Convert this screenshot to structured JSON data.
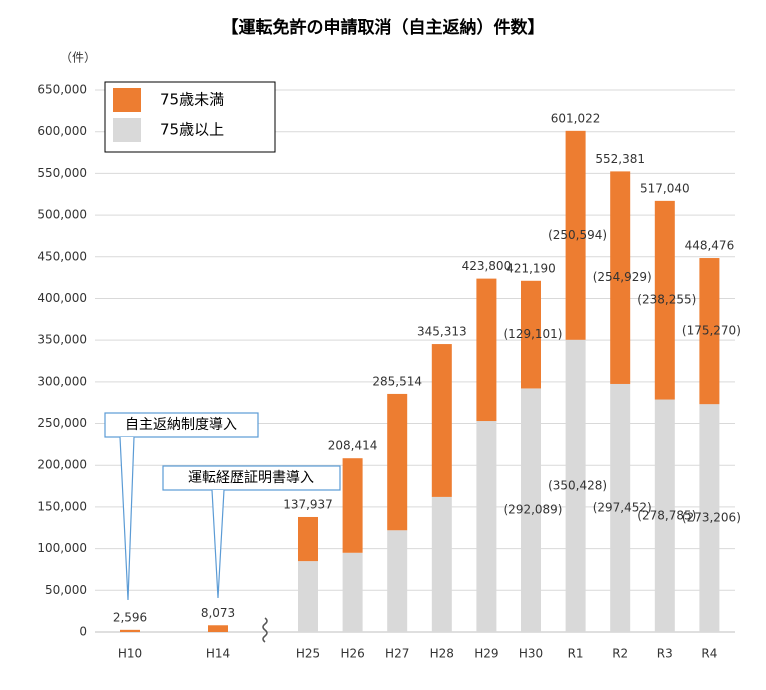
{
  "chart_data": {
    "type": "stacked_bar",
    "title": "【運転免許の申請取消（自主返納）件数】",
    "y_axis_label": "（件）",
    "categories": [
      "H10",
      "H14",
      "H25",
      "H26",
      "H27",
      "H28",
      "H29",
      "H30",
      "R1",
      "R2",
      "R3",
      "R4"
    ],
    "series": [
      {
        "name": "75歳未満",
        "color": "#ed7d31",
        "values": [
          2596,
          8073,
          52937,
          113414,
          163514,
          183313,
          170800,
          129101,
          250594,
          254929,
          238255,
          175270
        ],
        "value_labels": [
          null,
          null,
          null,
          null,
          null,
          null,
          null,
          "(129,101)",
          "(250,594)",
          "(254,929)",
          "(238,255)",
          "(175,270)"
        ]
      },
      {
        "name": "75歳以上",
        "color": "#d9d9d9",
        "values": [
          0,
          0,
          85000,
          95000,
          122000,
          162000,
          253000,
          292089,
          350428,
          297452,
          278785,
          273206
        ],
        "value_labels": [
          null,
          null,
          null,
          null,
          null,
          null,
          null,
          "(292,089)",
          "(350,428)",
          "(297,452)",
          "(278,785)",
          "(273,206)"
        ]
      }
    ],
    "totals": [
      2596,
      8073,
      137937,
      208414,
      285514,
      345313,
      423800,
      421190,
      601022,
      552381,
      517040,
      448476
    ],
    "total_labels": [
      "2,596",
      "8,073",
      "137,937",
      "208,414",
      "285,514",
      "345,313",
      "423,800",
      "421,190",
      "601,022",
      "552,381",
      "517,040",
      "448,476"
    ],
    "ylim": [
      0,
      650000
    ],
    "yticks": [
      0,
      {
        "value": 50000,
        "label": "50,000"
      },
      {
        "value": 100000,
        "label": "100,000"
      },
      {
        "value": 150000,
        "label": "150,000"
      },
      {
        "value": 200000,
        "label": "200,000"
      },
      {
        "value": 250000,
        "label": "250,000"
      },
      {
        "value": 300000,
        "label": "300,000"
      },
      {
        "value": 350000,
        "label": "350,000"
      },
      {
        "value": 400000,
        "label": "400,000"
      },
      {
        "value": 450000,
        "label": "450,000"
      },
      {
        "value": 500000,
        "label": "500,000"
      },
      {
        "value": 550000,
        "label": "550,000"
      },
      {
        "value": 600000,
        "label": "600,000"
      },
      {
        "value": 650000,
        "label": "650,000"
      }
    ],
    "grid": true,
    "axis_break_after": 1,
    "annotations": [
      "自主返納制度導入",
      "運転経歴証明書導入"
    ]
  }
}
